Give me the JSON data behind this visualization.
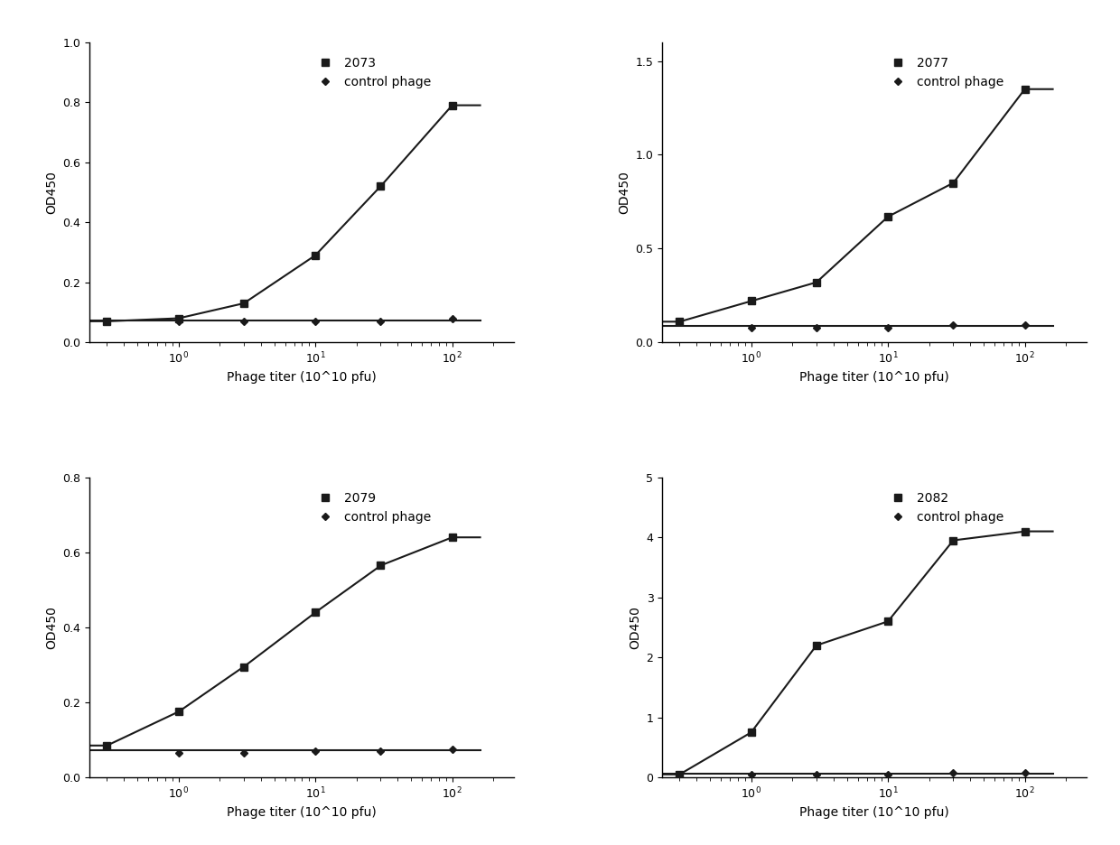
{
  "plots": [
    {
      "label": "2073",
      "control_label": "control phage",
      "xlabel": "Phage titer (10^10 pfu)",
      "ylabel": "OD450",
      "ylim": [
        0.0,
        1.0
      ],
      "yticks": [
        0.0,
        0.2,
        0.4,
        0.6,
        0.8,
        1.0
      ],
      "x_data": [
        0.3,
        1.0,
        3.0,
        10.0,
        30.0,
        100.0
      ],
      "y_data": [
        0.07,
        0.08,
        0.13,
        0.29,
        0.52,
        0.79
      ],
      "x_ctrl": [
        0.3,
        1.0,
        3.0,
        10.0,
        30.0,
        100.0
      ],
      "y_ctrl": [
        0.07,
        0.07,
        0.07,
        0.07,
        0.07,
        0.08
      ]
    },
    {
      "label": "2077",
      "control_label": "control phage",
      "xlabel": "Phage titer (10^10 pfu)",
      "ylabel": "OD450",
      "ylim": [
        0.0,
        1.6
      ],
      "yticks": [
        0.0,
        0.5,
        1.0,
        1.5
      ],
      "x_data": [
        0.3,
        1.0,
        3.0,
        10.0,
        30.0,
        100.0
      ],
      "y_data": [
        0.11,
        0.22,
        0.32,
        0.67,
        0.85,
        1.35
      ],
      "x_ctrl": [
        0.3,
        1.0,
        3.0,
        10.0,
        30.0,
        100.0
      ],
      "y_ctrl": [
        0.11,
        0.08,
        0.08,
        0.08,
        0.09,
        0.09
      ]
    },
    {
      "label": "2079",
      "control_label": "control phage",
      "xlabel": "Phage titer (10^10 pfu)",
      "ylabel": "OD450",
      "ylim": [
        0.0,
        0.8
      ],
      "yticks": [
        0.0,
        0.2,
        0.4,
        0.6,
        0.8
      ],
      "x_data": [
        0.3,
        1.0,
        3.0,
        10.0,
        30.0,
        100.0
      ],
      "y_data": [
        0.085,
        0.175,
        0.295,
        0.44,
        0.565,
        0.64
      ],
      "x_ctrl": [
        0.3,
        1.0,
        3.0,
        10.0,
        30.0,
        100.0
      ],
      "y_ctrl": [
        0.085,
        0.065,
        0.065,
        0.07,
        0.07,
        0.075
      ]
    },
    {
      "label": "2082",
      "control_label": "control phage",
      "xlabel": "Phage titer (10^10 pfu)",
      "ylabel": "OD450",
      "ylim": [
        0.0,
        5.0
      ],
      "yticks": [
        0,
        1,
        2,
        3,
        4,
        5
      ],
      "x_data": [
        0.3,
        1.0,
        3.0,
        10.0,
        30.0,
        100.0
      ],
      "y_data": [
        0.05,
        0.75,
        2.2,
        2.6,
        3.95,
        4.1
      ],
      "x_ctrl": [
        0.3,
        1.0,
        3.0,
        10.0,
        30.0,
        100.0
      ],
      "y_ctrl": [
        0.05,
        0.05,
        0.05,
        0.05,
        0.07,
        0.07
      ]
    }
  ],
  "line_color": "#1a1a1a",
  "marker_size": 6,
  "linewidth": 1.5,
  "background_color": "#ffffff",
  "label_fontsize": 10,
  "tick_fontsize": 9
}
